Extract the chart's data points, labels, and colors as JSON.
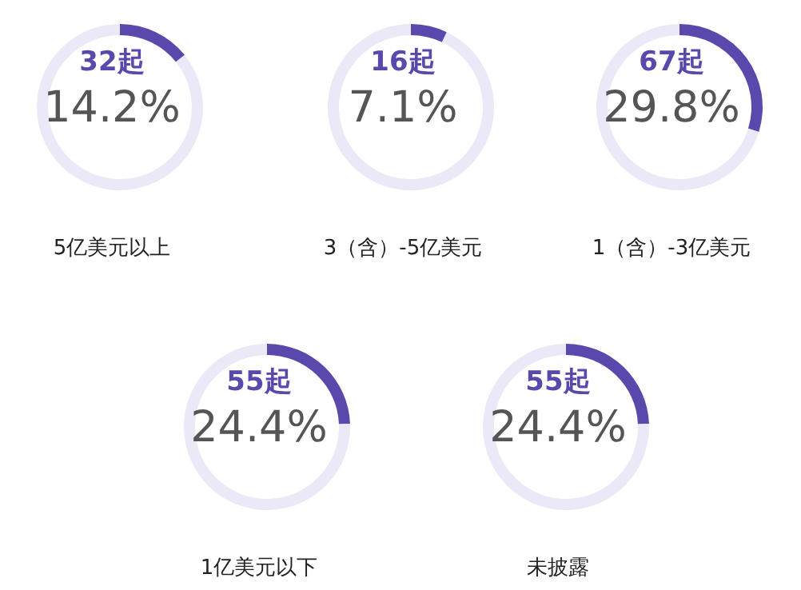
{
  "chart_data": [
    {
      "type": "donut",
      "title": "5亿美元以上",
      "categories": [
        null,
        null
      ],
      "values": [
        14.2,
        85.8
      ],
      "colors": [
        "#5b48ad",
        "#ebe9f8"
      ],
      "annotations": [
        "32起",
        "14.2%"
      ]
    },
    {
      "type": "donut",
      "title": "3（含）-5亿美元",
      "categories": [
        null,
        null
      ],
      "values": [
        7.1,
        92.9
      ],
      "colors": [
        "#5b48ad",
        "#ebe9f8"
      ],
      "annotations": [
        "16起",
        "7.1%"
      ]
    },
    {
      "type": "donut",
      "title": "1（含）-3亿美元",
      "categories": [
        null,
        null
      ],
      "values": [
        29.8,
        70.2
      ],
      "colors": [
        "#5b48ad",
        "#ebe9f8"
      ],
      "annotations": [
        "67起",
        "29.8%"
      ]
    },
    {
      "type": "donut",
      "title": "1亿美元以下",
      "categories": [
        null,
        null
      ],
      "values": [
        24.4,
        75.6
      ],
      "colors": [
        "#5b48ad",
        "#ebe9f8"
      ],
      "annotations": [
        "55起",
        "24.4%"
      ]
    },
    {
      "type": "donut",
      "title": "未披露",
      "categories": [
        null,
        null
      ],
      "values": [
        24.4,
        75.6
      ],
      "colors": [
        "#5b48ad",
        "#ebe9f8"
      ],
      "annotations": [
        "55起",
        "24.4%"
      ]
    }
  ]
}
